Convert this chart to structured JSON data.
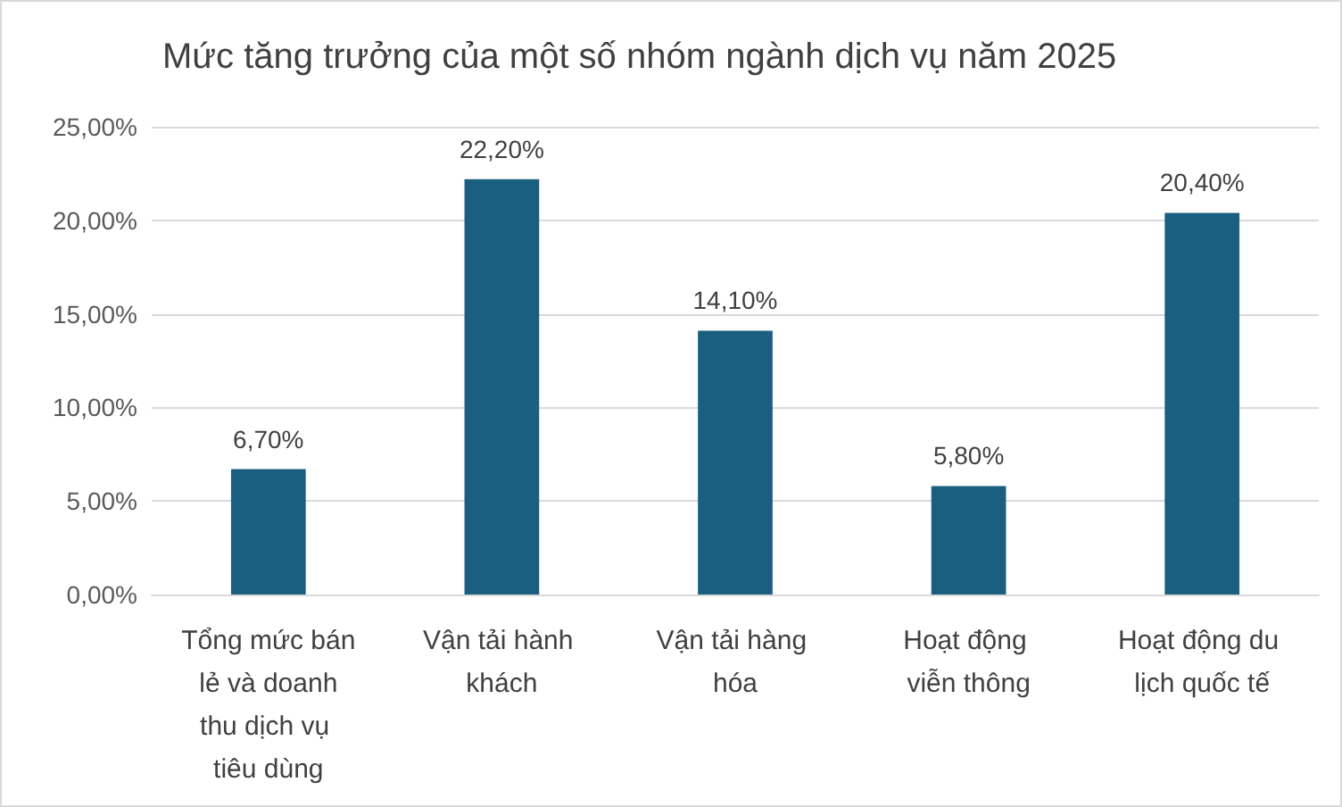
{
  "chart_data": {
    "type": "bar",
    "title": "Mức tăng trưởng của một số nhóm ngành dịch vụ năm 2025",
    "categories": [
      "Tổng mức bán lẻ và doanh thu dịch vụ tiêu dùng",
      "Vận tải hành khách",
      "Vận tải hàng hóa",
      "Hoạt động viễn thông",
      "Hoạt động du lịch quốc tế"
    ],
    "values": [
      6.7,
      22.2,
      14.1,
      5.8,
      20.4
    ],
    "value_labels": [
      "6,70%",
      "22,20%",
      "14,10%",
      "5,80%",
      "20,40%"
    ],
    "color": "#1a5f80",
    "ylim": [
      0,
      25
    ],
    "yticks": [
      {
        "value": 0,
        "label": "0,00%"
      },
      {
        "value": 5,
        "label": "5,00%"
      },
      {
        "value": 10,
        "label": "10,00%"
      },
      {
        "value": 15,
        "label": "15,00%"
      },
      {
        "value": 20,
        "label": "20,00%"
      },
      {
        "value": 25,
        "label": "25,00%"
      }
    ],
    "grid": "y"
  }
}
